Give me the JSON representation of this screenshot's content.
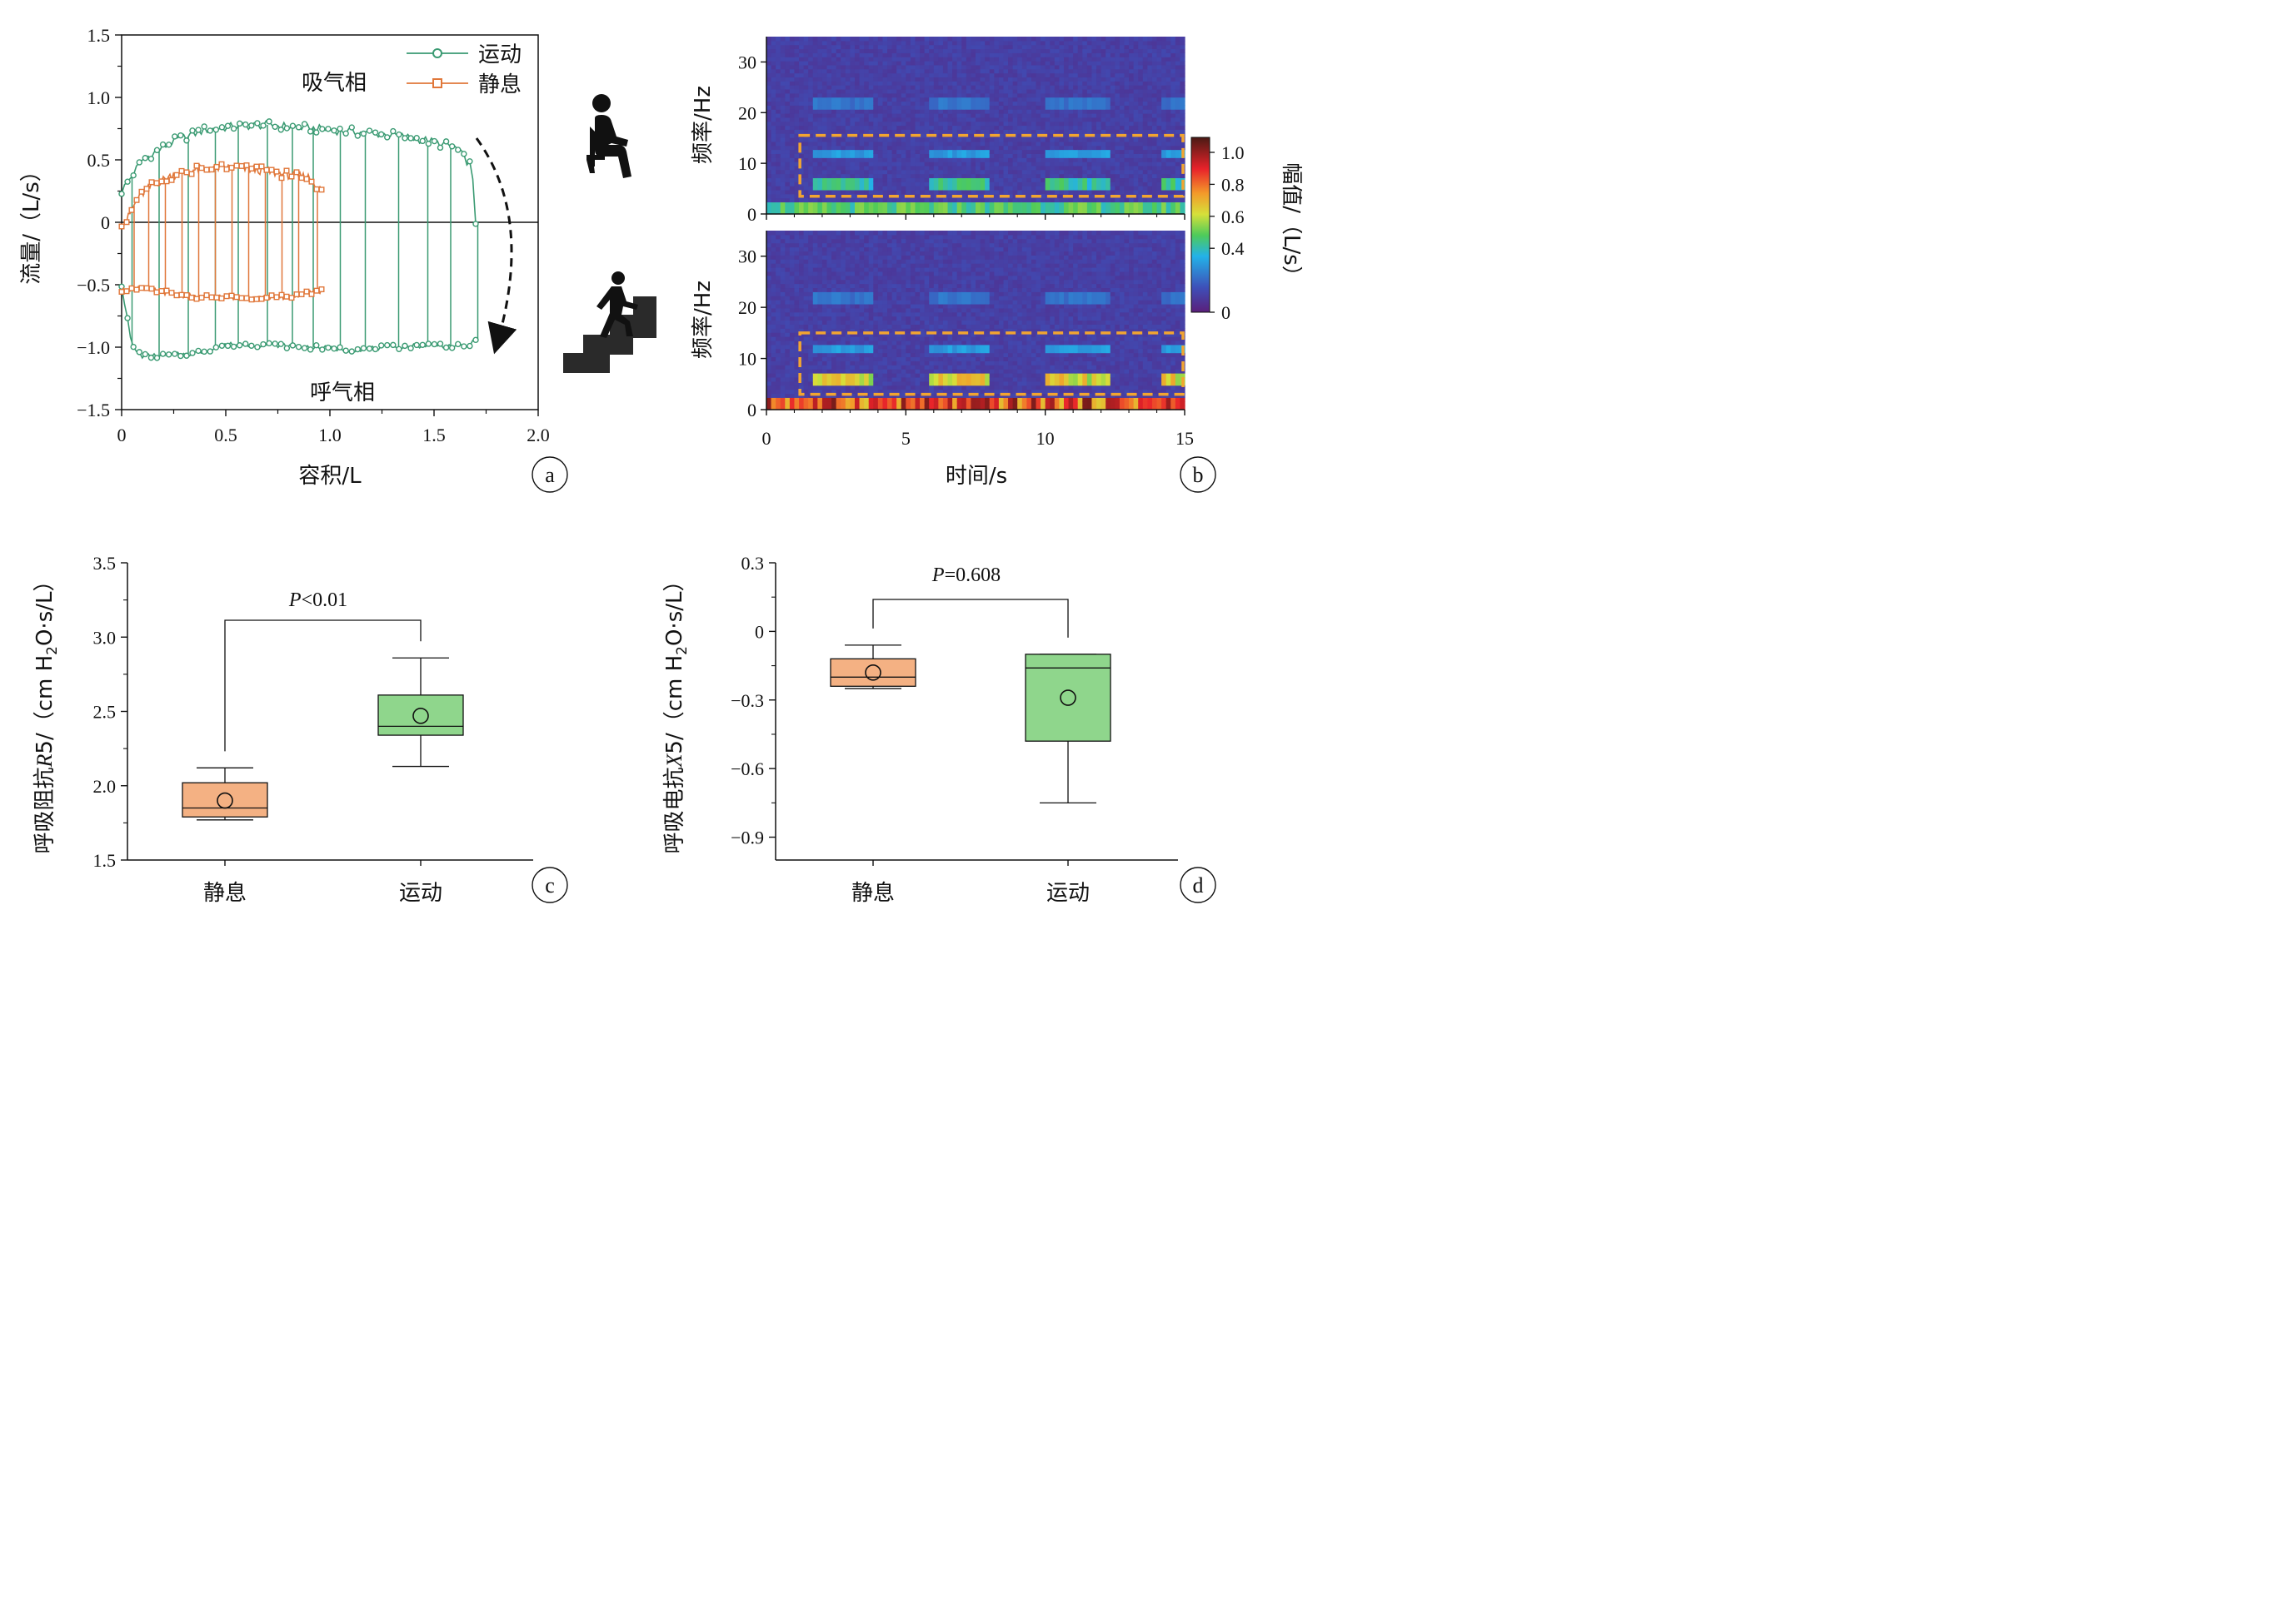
{
  "colors": {
    "exercise": "#3a9a72",
    "rest": "#e0773a",
    "box_rest_fill": "#f4b183",
    "box_exercise_fill": "#8fd68c",
    "dashed_box": "#f2a531",
    "text": "#111111"
  },
  "icons": {
    "sitting": "sitting-person-icon",
    "stairs": "stair-climbing-person-icon"
  },
  "chart_data": [
    {
      "type": "line",
      "panel": "a",
      "xlabel": "容积/L",
      "ylabel": "流量/（L/s）",
      "xlim": [
        0,
        2.0
      ],
      "ylim": [
        -1.5,
        1.5
      ],
      "xticks": [
        "0",
        "0.5",
        "1.0",
        "1.5",
        "2.0"
      ],
      "yticks": [
        "1.5",
        "1.0",
        "0.5",
        "0",
        "−0.5",
        "−1.0",
        "−1.5"
      ],
      "annotations": {
        "inspiration": "吸气相",
        "expiration": "呼气相"
      },
      "legend_position": "top-right",
      "series": [
        {
          "name": "运动",
          "marker": "circle",
          "inspiration_curve": {
            "x": [
              0,
              0.1,
              0.25,
              0.4,
              0.55,
              0.7,
              0.85,
              1.0,
              1.15,
              1.3,
              1.45,
              1.6,
              1.68,
              1.7
            ],
            "y": [
              0.25,
              0.5,
              0.65,
              0.74,
              0.77,
              0.78,
              0.76,
              0.74,
              0.72,
              0.7,
              0.66,
              0.6,
              0.45,
              0.0
            ]
          },
          "expiration_curve": {
            "x": [
              0.0,
              0.05,
              0.1,
              0.2,
              0.35,
              0.5,
              0.7,
              0.9,
              1.1,
              1.3,
              1.5,
              1.65,
              1.7
            ],
            "y": [
              -0.5,
              -1.0,
              -1.07,
              -1.07,
              -1.05,
              -0.98,
              -0.98,
              -1.0,
              -1.02,
              -1.0,
              -0.98,
              -1.0,
              -0.95
            ]
          },
          "spike_x": [
            0.05,
            0.18,
            0.32,
            0.45,
            0.56,
            0.7,
            0.82,
            0.92,
            1.05,
            1.17,
            1.33,
            1.47,
            1.58,
            1.71
          ]
        },
        {
          "name": "静息",
          "marker": "square",
          "inspiration_curve": {
            "x": [
              0.02,
              0.08,
              0.15,
              0.25,
              0.35,
              0.5,
              0.65,
              0.8,
              0.9,
              0.96
            ],
            "y": [
              0.0,
              0.2,
              0.3,
              0.38,
              0.42,
              0.44,
              0.42,
              0.38,
              0.36,
              0.25
            ]
          },
          "expiration_curve": {
            "x": [
              0.0,
              0.08,
              0.2,
              0.35,
              0.5,
              0.65,
              0.8,
              0.95
            ],
            "y": [
              -0.55,
              -0.52,
              -0.56,
              -0.6,
              -0.6,
              -0.6,
              -0.6,
              -0.55
            ]
          },
          "spike_x": [
            0.06,
            0.13,
            0.21,
            0.29,
            0.37,
            0.45,
            0.53,
            0.61,
            0.69,
            0.77,
            0.85,
            0.94
          ]
        }
      ]
    },
    {
      "type": "heatmap",
      "panel": "b",
      "xlabel": "时间/s",
      "ylabel": "频率/Hz",
      "colorbar_label": "幅值/（L/s）",
      "colorbar_ticks": [
        "1.0",
        "0.8",
        "0.6",
        "0.4",
        "0"
      ],
      "colorbar_range": [
        0,
        1.0
      ],
      "xlim": [
        0,
        15
      ],
      "ylim": [
        0,
        35
      ],
      "xticks": [
        "0",
        "5",
        "10",
        "15"
      ],
      "yticks": [
        "30",
        "20",
        "10",
        "0"
      ],
      "subplots": [
        {
          "condition": "静息",
          "highlight_box": {
            "x": [
              1.2,
              15
            ],
            "y": [
              3.5,
              15.5
            ]
          },
          "band_hz": [
            6,
            12,
            22
          ],
          "peak_amplitude": 0.4
        },
        {
          "condition": "运动",
          "highlight_box": {
            "x": [
              1.2,
              15
            ],
            "y": [
              3,
              15
            ]
          },
          "band_hz": [
            6,
            12,
            22
          ],
          "peak_amplitude": 0.6
        }
      ],
      "breath_cycles_s": [
        [
          1.7,
          3.9
        ],
        [
          5.8,
          8.0
        ],
        [
          10.0,
          12.3
        ],
        [
          14.2,
          15
        ]
      ]
    },
    {
      "type": "box",
      "panel": "c",
      "ylabel_parts": [
        "呼吸阻抗",
        "R",
        "5/（cm H",
        "2",
        "O·s/L）"
      ],
      "categories": [
        "静息",
        "运动"
      ],
      "ylim": [
        1.5,
        3.5
      ],
      "yticks": [
        "3.5",
        "3.0",
        "2.5",
        "2.0",
        "1.5"
      ],
      "significance_prefix": "P",
      "significance_text": "<0.01",
      "boxes": [
        {
          "name": "静息",
          "min": 1.77,
          "q1": 1.79,
          "median": 1.85,
          "q3": 2.02,
          "max": 2.12,
          "mean": 1.9
        },
        {
          "name": "运动",
          "min": 2.13,
          "q1": 2.34,
          "median": 2.4,
          "q3": 2.61,
          "max": 2.86,
          "mean": 2.47
        }
      ]
    },
    {
      "type": "box",
      "panel": "d",
      "ylabel_parts": [
        "呼吸电抗",
        "X",
        "5/（cm H",
        "2",
        "O·s/L）"
      ],
      "categories": [
        "静息",
        "运动"
      ],
      "ylim": [
        -1.0,
        0.3
      ],
      "yticks": [
        "0.3",
        "0",
        "−0.3",
        "−0.6",
        "−0.9"
      ],
      "significance_prefix": "P",
      "significance_text": "=0.608",
      "boxes": [
        {
          "name": "静息",
          "min": -0.25,
          "q1": -0.24,
          "median": -0.2,
          "q3": -0.12,
          "max": -0.06,
          "mean": -0.18
        },
        {
          "name": "运动",
          "min": -0.75,
          "q1": -0.48,
          "median": -0.16,
          "q3": -0.1,
          "max": -0.1,
          "mean": -0.29
        }
      ]
    }
  ]
}
